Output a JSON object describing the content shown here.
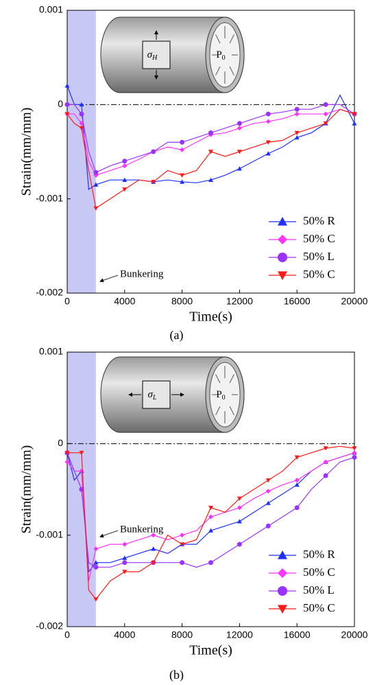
{
  "chart_data": [
    {
      "type": "line",
      "caption": "(a)",
      "x_label": "Time(s)",
      "y_label": "Strain(mm/mm)",
      "annotation": "Bunkering",
      "inset_labels": [
        {
          "base": "σ",
          "sub": "H"
        },
        {
          "base": "P",
          "sub": "0"
        }
      ],
      "shade_x": [
        0,
        2000
      ],
      "legend": "lower right",
      "xlim": [
        0,
        20000
      ],
      "xticks": [
        0,
        4000,
        8000,
        12000,
        16000,
        20000
      ],
      "ylim": [
        -0.002,
        0.001
      ],
      "yticks": [
        -0.002,
        -0.001,
        0,
        0.001
      ],
      "x": [
        0,
        500,
        1000,
        1500,
        2000,
        3000,
        4000,
        5000,
        6000,
        7000,
        8000,
        9000,
        10000,
        11000,
        12000,
        13000,
        14000,
        15000,
        16000,
        17000,
        18000,
        19000,
        20000
      ],
      "series": [
        {
          "name": "50% R",
          "color": "#1f2fff",
          "marker": "triangle-up",
          "values": [
            0.0002,
            0,
            0,
            -0.0009,
            -0.00085,
            -0.0008,
            -0.0008,
            -0.0008,
            -0.00082,
            -0.0008,
            -0.00082,
            -0.00083,
            -0.0008,
            -0.00075,
            -0.00068,
            -0.0006,
            -0.00052,
            -0.00045,
            -0.00035,
            -0.0003,
            -0.0002,
            0.0001,
            -0.0002
          ]
        },
        {
          "name": "50% C",
          "color": "#ff33ff",
          "marker": "diamond",
          "values": [
            -0.0001,
            -0.0001,
            -0.0002,
            -0.0006,
            -0.00075,
            -0.0007,
            -0.00065,
            -0.00058,
            -0.0005,
            -0.00045,
            -0.00048,
            -0.0004,
            -0.00032,
            -0.0003,
            -0.00025,
            -0.0002,
            -0.00018,
            -0.00015,
            -0.0001,
            -0.0001,
            -0.0001,
            -5e-05,
            -0.0001
          ]
        },
        {
          "name": "50% L",
          "color": "#9933ff",
          "marker": "circle",
          "values": [
            0,
            0,
            -0.0001,
            -0.0005,
            -0.00072,
            -0.00065,
            -0.0006,
            -0.00055,
            -0.0005,
            -0.0004,
            -0.0004,
            -0.00035,
            -0.0003,
            -0.00025,
            -0.0002,
            -0.00015,
            -0.0001,
            -8e-05,
            -5e-05,
            -5e-05,
            0,
            0,
            -0.0001
          ]
        },
        {
          "name": "50% C",
          "color": "#ff1a1a",
          "marker": "triangle-down",
          "values": [
            -0.0001,
            -0.0002,
            -0.00025,
            -0.0007,
            -0.0011,
            -0.001,
            -0.0009,
            -0.0008,
            -0.00082,
            -0.0007,
            -0.00075,
            -0.0007,
            -0.0005,
            -0.00055,
            -0.0005,
            -0.00045,
            -0.0004,
            -0.00038,
            -0.0003,
            -0.00025,
            -0.0002,
            -5e-05,
            -0.0001
          ]
        }
      ]
    },
    {
      "type": "line",
      "caption": "(b)",
      "x_label": "Time(s)",
      "y_label": "Strain(mm/mm)",
      "annotation": "Bunkering",
      "inset_labels": [
        {
          "base": "σ",
          "sub": "L"
        },
        {
          "base": "P",
          "sub": "0"
        }
      ],
      "shade_x": [
        0,
        2000
      ],
      "legend": "lower right",
      "xlim": [
        0,
        20000
      ],
      "xticks": [
        0,
        4000,
        8000,
        12000,
        16000,
        20000
      ],
      "ylim": [
        -0.002,
        0.001
      ],
      "yticks": [
        -0.002,
        -0.001,
        0,
        0.001
      ],
      "x": [
        0,
        500,
        1000,
        1500,
        2000,
        3000,
        4000,
        5000,
        6000,
        7000,
        8000,
        9000,
        10000,
        11000,
        12000,
        13000,
        14000,
        15000,
        16000,
        17000,
        18000,
        19000,
        20000
      ],
      "series": [
        {
          "name": "50% R",
          "color": "#1f2fff",
          "marker": "triangle-up",
          "values": [
            -0.0001,
            -0.0004,
            -0.0003,
            -0.0014,
            -0.0013,
            -0.0013,
            -0.00125,
            -0.0012,
            -0.00115,
            -0.0012,
            -0.0011,
            -0.0011,
            -0.00095,
            -0.0009,
            -0.00085,
            -0.00075,
            -0.00065,
            -0.00055,
            -0.00045,
            -0.0003,
            -0.0002,
            -0.00015,
            -0.0001
          ]
        },
        {
          "name": "50% C",
          "color": "#ff33ff",
          "marker": "diamond",
          "values": [
            -0.0002,
            -0.0003,
            -0.0003,
            -0.0015,
            -0.00115,
            -0.0011,
            -0.0011,
            -0.00105,
            -0.001,
            -0.00105,
            -0.001,
            -0.00095,
            -0.0008,
            -0.00075,
            -0.0007,
            -0.0006,
            -0.00052,
            -0.00045,
            -0.0004,
            -0.0003,
            -0.0002,
            -0.00015,
            -0.0001
          ]
        },
        {
          "name": "50% L",
          "color": "#9933ff",
          "marker": "circle",
          "values": [
            -0.0001,
            -0.0003,
            -0.0005,
            -0.0013,
            -0.00135,
            -0.00135,
            -0.0013,
            -0.0013,
            -0.0013,
            -0.0013,
            -0.0013,
            -0.00135,
            -0.0013,
            -0.0012,
            -0.0011,
            -0.001,
            -0.0009,
            -0.0008,
            -0.0007,
            -0.0005,
            -0.00035,
            -0.0002,
            -0.00015
          ]
        },
        {
          "name": "50% C",
          "color": "#ff1a1a",
          "marker": "triangle-down",
          "values": [
            -0.0001,
            -0.0001,
            -0.0001,
            -0.0016,
            -0.0017,
            -0.0015,
            -0.0014,
            -0.0014,
            -0.0013,
            -0.001,
            -0.0011,
            -0.00105,
            -0.0007,
            -0.00075,
            -0.0006,
            -0.0005,
            -0.0004,
            -0.0003,
            -0.00015,
            -0.0001,
            -5e-05,
            -3e-05,
            -5e-05
          ]
        }
      ]
    }
  ]
}
